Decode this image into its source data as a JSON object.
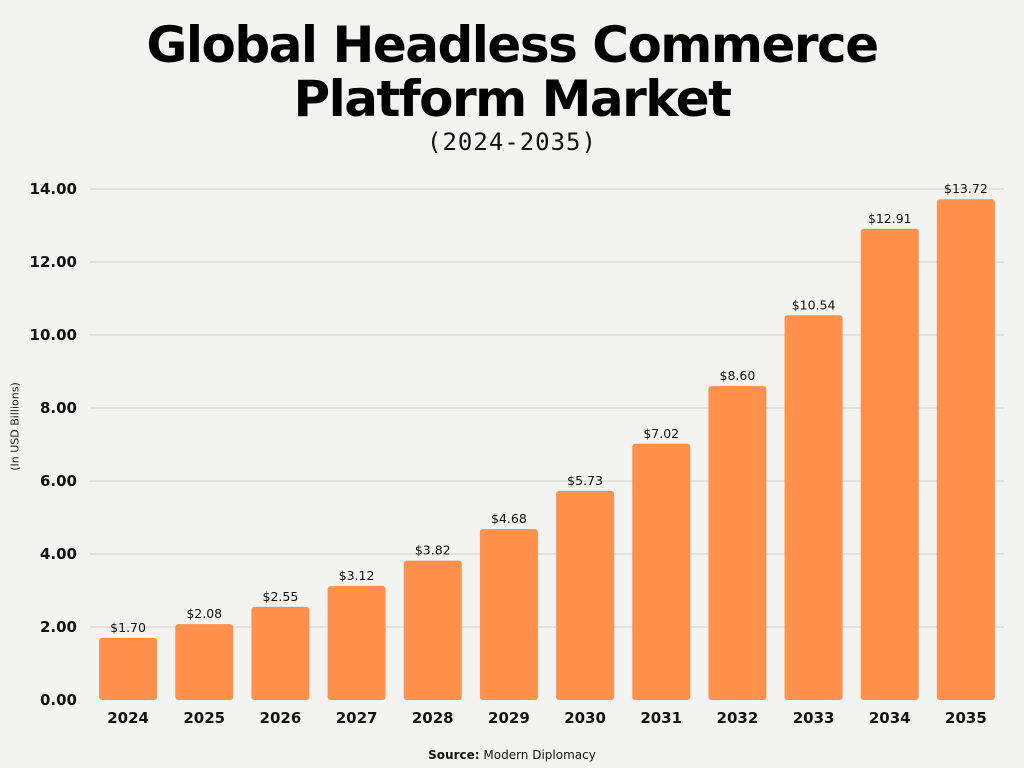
{
  "chart_data": {
    "type": "bar",
    "title": "Global Headless Commerce Platform Market",
    "subtitle": "(2024-2035)",
    "xlabel": "",
    "ylabel": "(In USD Billions)",
    "categories": [
      "2024",
      "2025",
      "2026",
      "2027",
      "2028",
      "2029",
      "2030",
      "2031",
      "2032",
      "2033",
      "2034",
      "2035"
    ],
    "values": [
      1.7,
      2.08,
      2.55,
      3.12,
      3.82,
      4.68,
      5.73,
      7.02,
      8.6,
      10.54,
      12.91,
      13.72
    ],
    "data_labels": [
      "$1.70",
      "$2.08",
      "$2.55",
      "$3.12",
      "$3.82",
      "$4.68",
      "$5.73",
      "$7.02",
      "$8.60",
      "$10.54",
      "$12.91",
      "$13.72"
    ],
    "ylim": [
      0,
      14
    ],
    "yticks": [
      "0.00",
      "2.00",
      "4.00",
      "6.00",
      "8.00",
      "10.00",
      "12.00",
      "14.00"
    ],
    "grid": true,
    "bar_color": "#FF914D",
    "source_label": "Source:",
    "source": "Modern Diplomacy"
  }
}
